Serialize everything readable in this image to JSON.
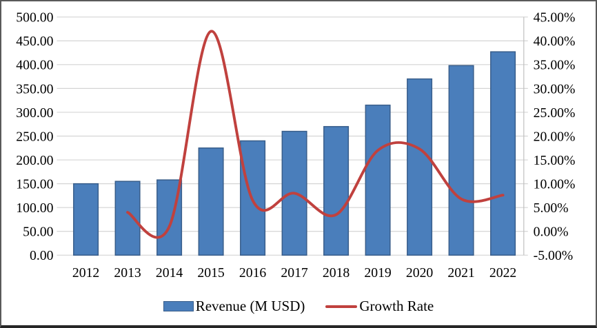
{
  "chart_data": {
    "type": "combo-bar-line",
    "title": "",
    "categories": [
      "2012",
      "2013",
      "2014",
      "2015",
      "2016",
      "2017",
      "2018",
      "2019",
      "2020",
      "2021",
      "2022"
    ],
    "series": [
      {
        "name": "Revenue (M USD)",
        "type": "bar",
        "axis": "left",
        "color": "#4a7ebb",
        "border_color": "#385d8a",
        "values": [
          150,
          155,
          158,
          225,
          240,
          260,
          270,
          315,
          370,
          398,
          427
        ]
      },
      {
        "name": "Growth Rate",
        "type": "line",
        "axis": "right",
        "color": "#c0413e",
        "start_category_index": 1,
        "values": [
          4.0,
          1.0,
          42.0,
          6.5,
          8.0,
          3.5,
          17.0,
          17.3,
          6.8,
          7.6
        ]
      }
    ],
    "left_axis": {
      "min": 0,
      "max": 500,
      "step": 50,
      "labels": [
        "0.00",
        "50.00",
        "100.00",
        "150.00",
        "200.00",
        "250.00",
        "300.00",
        "350.00",
        "400.00",
        "450.00",
        "500.00"
      ]
    },
    "right_axis": {
      "min": -5,
      "max": 45,
      "step": 5,
      "labels": [
        "-5.00%",
        "0.00%",
        "5.00%",
        "10.00%",
        "15.00%",
        "20.00%",
        "25.00%",
        "30.00%",
        "35.00%",
        "40.00%",
        "45.00%"
      ]
    },
    "grid": true,
    "gridline_color": "#d4d4d4",
    "axis_line_color": "#bfbfbf",
    "legend_position": "bottom"
  }
}
